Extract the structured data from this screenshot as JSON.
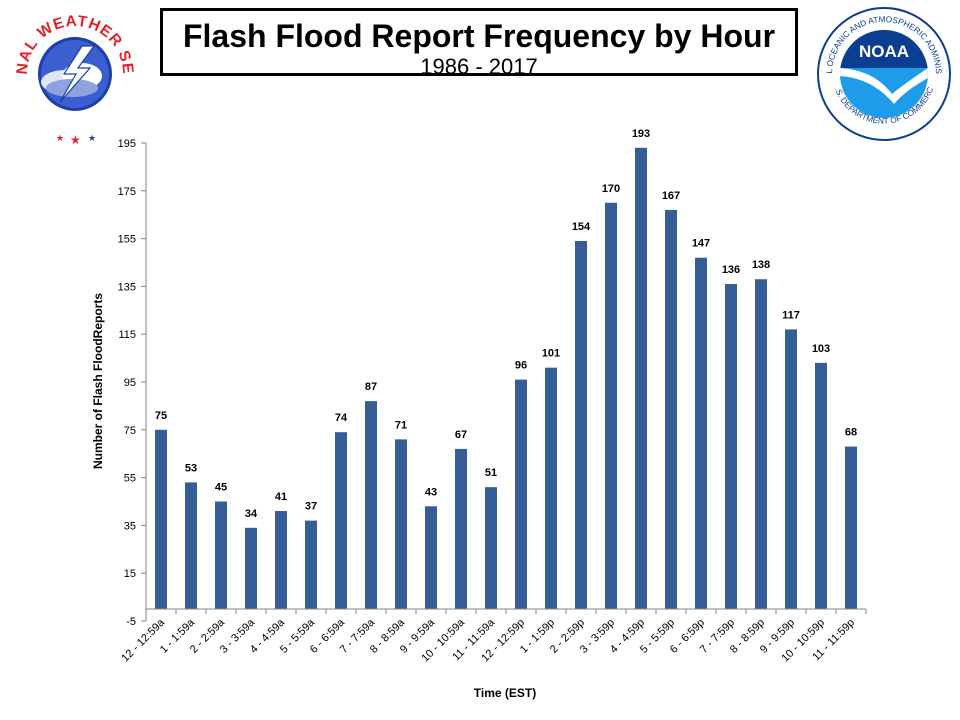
{
  "header": {
    "title": "Flash Flood Report Frequency by Hour",
    "subtitle": "1986 - 2017"
  },
  "logos": {
    "nws": {
      "text": "NATIONAL WEATHER SERVICE",
      "icon": "nws-logo-icon"
    },
    "noaa": {
      "text_top": "NATIONAL OCEANIC AND ATMOSPHERIC ADMINISTRATION",
      "text_bottom": "U.S. DEPARTMENT OF COMMERCE",
      "center": "NOAA",
      "icon": "noaa-logo-icon"
    }
  },
  "colors": {
    "bar": "#365E96",
    "axis": "#868686",
    "nws_blue": "#1E3FA8",
    "nws_red": "#E32227",
    "noaa_blue": "#0B3D91",
    "noaa_cyan": "#1E9BE9"
  },
  "chart_data": {
    "type": "bar",
    "xlabel": "Time (EST)",
    "ylabel": "Number of Flash FloodReports",
    "ylim": [
      -5,
      195
    ],
    "yticks": [
      -5,
      15,
      35,
      55,
      75,
      95,
      115,
      135,
      155,
      175,
      195
    ],
    "grid": false,
    "categories": [
      "12 - 12:59a",
      "1 - 1:59a",
      "2 - 2:59a",
      "3 - 3:59a",
      "4 - 4:59a",
      "5 - 5:59a",
      "6 - 6:59a",
      "7 - 7:59a",
      "8 - 8:59a",
      "9 - 9:59a",
      "10 - 10:59a",
      "11 - 11:59a",
      "12 - 12:59p",
      "1 - 1:59p",
      "2 - 2:59p",
      "3 - 3:59p",
      "4 - 4:59p",
      "5 - 5:59p",
      "6 - 6:59p",
      "7 - 7:59p",
      "8 - 8:59p",
      "9 - 9:59p",
      "10 - 10:59p",
      "11 - 11:59p"
    ],
    "values": [
      75,
      53,
      45,
      34,
      41,
      37,
      74,
      87,
      71,
      43,
      67,
      51,
      96,
      101,
      154,
      170,
      193,
      167,
      147,
      136,
      138,
      117,
      103,
      68
    ]
  }
}
